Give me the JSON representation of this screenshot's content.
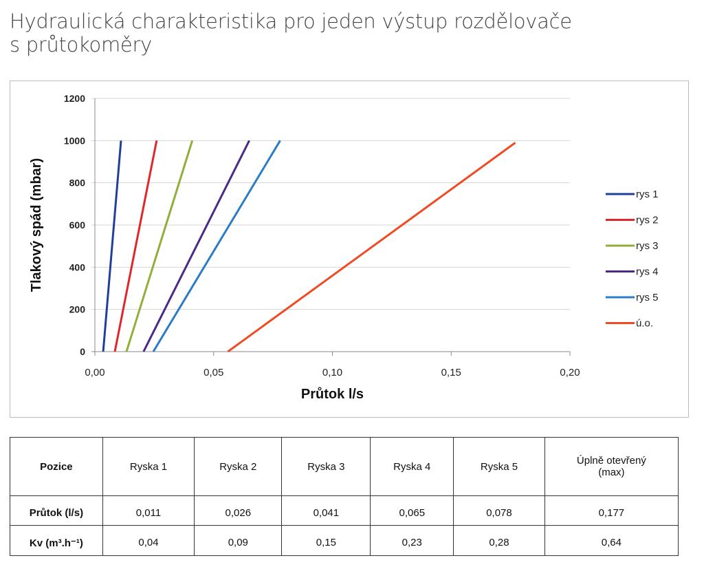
{
  "title": {
    "line1": "Hydraulická charakteristika pro jeden výstup rozdělovače",
    "line2": "s průtokoměry"
  },
  "chart_data": {
    "type": "line",
    "xlabel": "Průtok l/s",
    "ylabel": "Tlakový spád (mbar)",
    "xlim": [
      0,
      0.2
    ],
    "ylim": [
      0,
      1200
    ],
    "xticks": [
      "0,00",
      "0,05",
      "0,10",
      "0,15",
      "0,20"
    ],
    "yticks": [
      "0",
      "200",
      "400",
      "600",
      "800",
      "1000",
      "1200"
    ],
    "grid": "horizontal",
    "legend": "right",
    "series": [
      {
        "name": "rys 1",
        "color": "#1f3f9a",
        "x": [
          0.0035,
          0.011
        ],
        "y": [
          0,
          1000
        ]
      },
      {
        "name": "rys 2",
        "color": "#e0262b",
        "x": [
          0.0084,
          0.026
        ],
        "y": [
          0,
          1000
        ]
      },
      {
        "name": "rys 3",
        "color": "#8fae3a",
        "x": [
          0.0133,
          0.041
        ],
        "y": [
          0,
          1000
        ]
      },
      {
        "name": "rys 4",
        "color": "#4b2a86",
        "x": [
          0.0205,
          0.065
        ],
        "y": [
          0,
          1000
        ]
      },
      {
        "name": "rys 5",
        "color": "#2b7cc4",
        "x": [
          0.0246,
          0.078
        ],
        "y": [
          0,
          1000
        ]
      },
      {
        "name": "ú.o.",
        "color": "#f04a22",
        "x": [
          0.056,
          0.177
        ],
        "y": [
          0,
          990
        ]
      }
    ]
  },
  "table": {
    "header": [
      "Pozice",
      "Ryska 1",
      "Ryska 2",
      "Ryska 3",
      "Ryska 4",
      "Ryska 5",
      "Úplně otevřený (max)"
    ],
    "rows": [
      [
        "Průtok (l/s)",
        "0,011",
        "0,026",
        "0,041",
        "0,065",
        "0,078",
        "0,177"
      ],
      [
        "Kv (m³.h⁻¹)",
        "0,04",
        "0,09",
        "0,15",
        "0,23",
        "0,28",
        "0,64"
      ]
    ]
  }
}
